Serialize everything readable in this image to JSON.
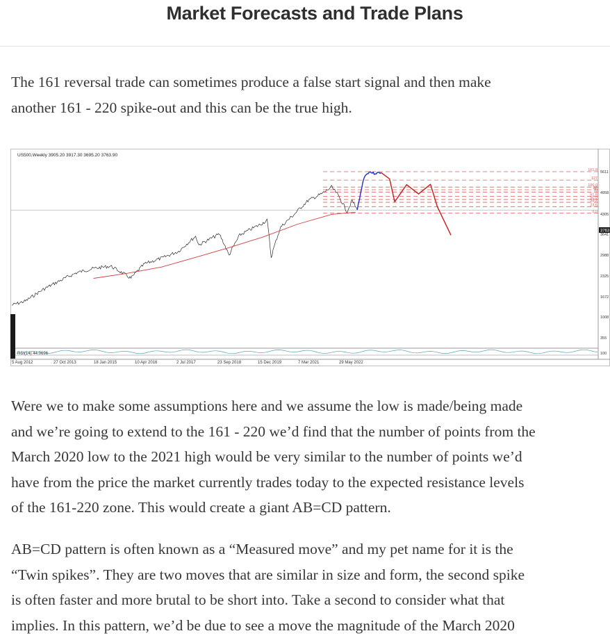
{
  "header": {
    "title": "Market Forecasts and Trade Plans"
  },
  "intro": {
    "lines": [
      "The 161 reversal trade can sometimes produce a false start signal and then make",
      "another 161 - 220 spike-out and this can be the true high."
    ]
  },
  "body": {
    "paragraph1": [
      "Were we to make some assumptions here and we assume the low is made/being made",
      "and we’re going to extend to the 161 - 220 we’d find that the number of points from the",
      "March 2020 low to the 2021 high would be very similar to the number of points we’d",
      "have from the price the market currently trades today to the expected resistance levels",
      "of the 161-220 zone. This would create a giant AB=CD pattern."
    ],
    "paragraph2": [
      "AB=CD pattern is often known as a “Measured move” and my pet name for it is the",
      "“Twin spikes”. They are two moves that are similar in size and form, the second spike",
      "is often faster and more brutal to be short into. Take a second to consider what that",
      "implies. In this pattern, we’d be due to see a move the magnitude of the March 2020"
    ]
  },
  "chart_data": {
    "type": "line",
    "header_label": "US500,Weekly  3905.20 3917.30 3695.20 3763.90",
    "indicator_label": "RSI(14) 44.0696",
    "log_scale": true,
    "grid": false,
    "x_ticks": [
      "5 Aug 2012",
      "27 Oct 2013",
      "18 Jan 2015",
      "10 Apr 2016",
      "2 Jul 2017",
      "23 Sep 2018",
      "15 Dec 2019",
      "7 Mar 2021",
      "29 May 2022"
    ],
    "y_ticks": [
      5611,
      4958,
      4305,
      3763,
      3641,
      2988,
      2325,
      1672,
      1008,
      355,
      100
    ],
    "current_price": 3763.9,
    "fib_levels": [
      {
        "label": "161.8",
        "value": 5611
      },
      {
        "label": "127",
        "value": 5140
      },
      {
        "label": "100.0",
        "value": 4780
      },
      {
        "label": "88",
        "value": 4650
      },
      {
        "label": "78",
        "value": 4540
      },
      {
        "label": "61.8",
        "value": 4340
      },
      {
        "label": "50.0",
        "value": 4200
      },
      {
        "label": "38.2",
        "value": 4080
      },
      {
        "label": "23.6",
        "value": 3900
      },
      {
        "label": "0.0",
        "value": 3641
      }
    ],
    "series": [
      {
        "kind": "price",
        "x": [
          2012.6,
          2013.0,
          2013.5,
          2014.0,
          2014.5,
          2015.0,
          2015.5,
          2016.1,
          2016.5,
          2017.0,
          2017.5,
          2018.0,
          2018.1,
          2018.7,
          2018.98,
          2019.3,
          2019.9,
          2020.1,
          2020.22,
          2020.5,
          2020.9,
          2021.3,
          2021.7,
          2022.0,
          2022.2,
          2022.45,
          2022.6,
          2022.75
        ],
        "y": [
          1400,
          1460,
          1640,
          1800,
          1960,
          2050,
          2100,
          1850,
          2150,
          2280,
          2450,
          2860,
          2620,
          2930,
          2350,
          2900,
          3240,
          3380,
          2300,
          3150,
          3600,
          4150,
          4450,
          4780,
          4350,
          3700,
          4150,
          3763
        ]
      },
      {
        "kind": "moving_average",
        "x": [
          2015.0,
          2016.0,
          2017.0,
          2018.0,
          2019.0,
          2020.0,
          2021.0,
          2022.0,
          2022.7
        ],
        "y": [
          1850,
          1950,
          2080,
          2300,
          2550,
          2850,
          3250,
          3600,
          3680
        ]
      },
      {
        "kind": "projection_up",
        "x": [
          2022.75,
          2022.85,
          2022.95,
          2023.1,
          2023.25,
          2023.45
        ],
        "y": [
          3763,
          4500,
          5300,
          5611,
          5500,
          5560
        ]
      },
      {
        "kind": "projection_down",
        "x": [
          2023.45,
          2023.7,
          2023.85,
          2024.2,
          2024.55,
          2024.9,
          2025.1,
          2025.5
        ],
        "y": [
          5560,
          5200,
          4100,
          4900,
          4450,
          4920,
          3900,
          2900
        ]
      }
    ],
    "colors": {
      "price": "#2b2b2b",
      "moving_average": "#d43c3c",
      "fib": "#e05a5a",
      "projection_up": "#1a2fc4",
      "projection_down": "#c41a1a"
    }
  }
}
